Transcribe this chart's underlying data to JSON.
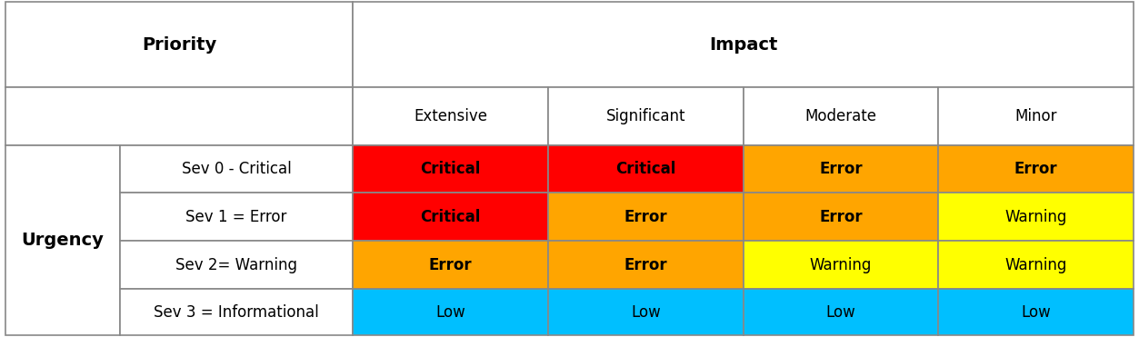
{
  "title_impact": "Impact",
  "title_priority": "Priority",
  "title_urgency": "Urgency",
  "impact_cols": [
    "Extensive",
    "Significant",
    "Moderate",
    "Minor"
  ],
  "urgency_rows": [
    "Sev 0 - Critical",
    "Sev 1 = Error",
    "Sev 2= Warning",
    "Sev 3 = Informational"
  ],
  "cell_labels": [
    [
      "Critical",
      "Critical",
      "Error",
      "Error"
    ],
    [
      "Critical",
      "Error",
      "Error",
      "Warning"
    ],
    [
      "Error",
      "Error",
      "Warning",
      "Warning"
    ],
    [
      "Low",
      "Low",
      "Low",
      "Low"
    ]
  ],
  "cell_colors": [
    [
      "#FF0000",
      "#FF0000",
      "#FFA500",
      "#FFA500"
    ],
    [
      "#FF0000",
      "#FFA500",
      "#FFA500",
      "#FFFF00"
    ],
    [
      "#FFA500",
      "#FFA500",
      "#FFFF00",
      "#FFFF00"
    ],
    [
      "#00BFFF",
      "#00BFFF",
      "#00BFFF",
      "#00BFFF"
    ]
  ],
  "cell_text_bold": [
    [
      true,
      true,
      true,
      true
    ],
    [
      true,
      true,
      true,
      false
    ],
    [
      true,
      true,
      false,
      false
    ],
    [
      false,
      false,
      false,
      false
    ]
  ],
  "bg_color": "#FFFFFF",
  "border_color": "#888888",
  "header_bg": "#FFFFFF",
  "fontsize_impact_header": 14,
  "fontsize_col_header": 12,
  "fontsize_cell": 12,
  "fontsize_urgency": 14,
  "fontsize_priority": 14,
  "figwidth": 12.53,
  "figheight": 3.71
}
